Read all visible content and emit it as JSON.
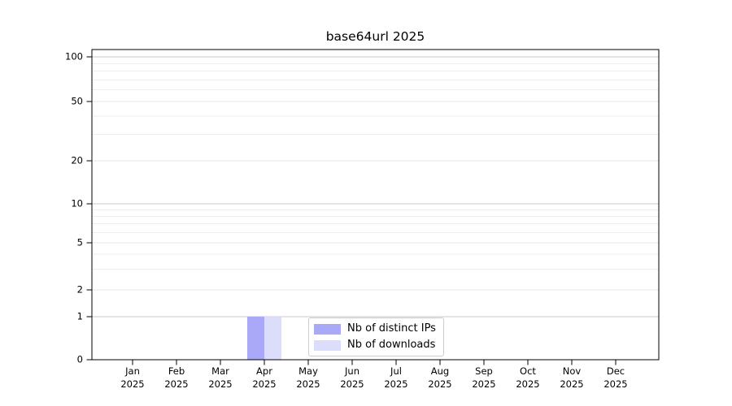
{
  "chart_data": {
    "type": "bar",
    "title": "base64url 2025",
    "categories": [
      "Jan",
      "Feb",
      "Mar",
      "Apr",
      "May",
      "Jun",
      "Jul",
      "Aug",
      "Sep",
      "Oct",
      "Nov",
      "Dec"
    ],
    "category_year": "2025",
    "series": [
      {
        "name": "Nb of distinct IPs",
        "color": "#a9a9f7",
        "values": [
          0,
          0,
          0,
          1,
          0,
          0,
          0,
          0,
          0,
          0,
          0,
          0
        ]
      },
      {
        "name": "Nb of downloads",
        "color": "#dcdcfb",
        "values": [
          0,
          0,
          0,
          1,
          0,
          0,
          0,
          0,
          0,
          0,
          0,
          0
        ]
      }
    ],
    "yticks": [
      0,
      1,
      2,
      5,
      10,
      20,
      50,
      100
    ],
    "ylim": [
      0,
      100
    ],
    "yscale": "symlog",
    "grid": "both",
    "legend_position": "lower-center-inside",
    "xlabel": "",
    "ylabel": ""
  },
  "style_colors": {
    "axis": "#000000",
    "grid_major": "#c8c8c8",
    "grid_minor_labeled": "#e4e4e4",
    "grid_minor": "#eeeeee",
    "legend_border": "#cccccc",
    "background": "#ffffff"
  }
}
